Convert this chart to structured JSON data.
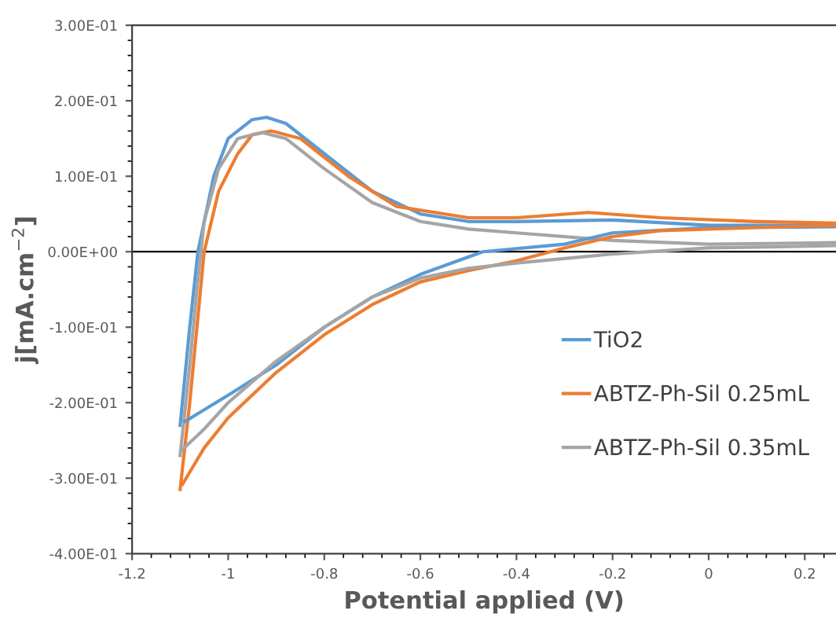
{
  "chart_data": {
    "type": "line",
    "xlabel": "Potential applied (V)",
    "ylabel": "j[mA.cm$^{−2}$]",
    "xlim": [
      -1.2,
      0.265
    ],
    "ylim": [
      -0.4,
      0.3
    ],
    "xticks": [
      -1.2,
      -1,
      -0.8,
      -0.6,
      -0.4,
      -0.2,
      0,
      0.2
    ],
    "yticks": [
      {
        "value": -0.4,
        "label": "-4.00E-01"
      },
      {
        "value": -0.3,
        "label": "-3.00E-01"
      },
      {
        "value": -0.2,
        "label": "-2.00E-01"
      },
      {
        "value": -0.1,
        "label": "-1.00E-01"
      },
      {
        "value": 0,
        "label": "0.00E+00"
      },
      {
        "value": 0.1,
        "label": "1.00E-01"
      },
      {
        "value": 0.2,
        "label": "2.00E-01"
      },
      {
        "value": 0.3,
        "label": "3.00E-01"
      }
    ],
    "ref_lines": [
      {
        "axis": "y",
        "value": 0,
        "color": "#000000"
      }
    ],
    "legend": "right",
    "grid": false,
    "marker": "none",
    "line_style": "solid",
    "series": [
      {
        "name": "TiO2",
        "color": "#5b9bd5",
        "x": [
          -1.1,
          -1.08,
          -1.063,
          -1.03,
          -1.0,
          -0.95,
          -0.92,
          -0.88,
          -0.8,
          -0.7,
          -0.6,
          -0.5,
          -0.4,
          -0.2,
          0,
          0.265
        ],
        "values": [
          -0.23,
          -0.1,
          0,
          0.1,
          0.15,
          0.175,
          0.178,
          0.17,
          0.13,
          0.08,
          0.05,
          0.04,
          0.04,
          0.042,
          0.035,
          0.035
        ]
      },
      {
        "name": "ABTZ-Ph-Sil 0.25mL",
        "color": "#ed7d31",
        "x": [
          -1.1,
          -1.08,
          -1.065,
          -1.05,
          -1.02,
          -0.98,
          -0.95,
          -0.91,
          -0.85,
          -0.75,
          -0.65,
          -0.5,
          -0.4,
          -0.25,
          -0.1,
          0.1,
          0.265
        ],
        "values": [
          -0.315,
          -0.2,
          -0.1,
          0,
          0.08,
          0.13,
          0.155,
          0.16,
          0.15,
          0.1,
          0.06,
          0.045,
          0.045,
          0.052,
          0.045,
          0.04,
          0.038
        ]
      },
      {
        "name": "ABTZ-Ph-Sil 0.35mL",
        "color": "#a5a5a5",
        "x": [
          -1.1,
          -1.08,
          -1.065,
          -1.05,
          -1.02,
          -0.98,
          -0.93,
          -0.88,
          -0.8,
          -0.7,
          -0.6,
          -0.5,
          -0.4,
          -0.2,
          0,
          0.265
        ],
        "values": [
          -0.27,
          -0.15,
          -0.05,
          0.04,
          0.11,
          0.15,
          0.158,
          0.15,
          0.11,
          0.065,
          0.04,
          0.03,
          0.025,
          0.015,
          0.01,
          0.012
        ]
      },
      {
        "color": "#5b9bd5",
        "x": [
          -1.09,
          -1.0,
          -0.9,
          -0.8,
          -0.7,
          -0.6,
          -0.47,
          -0.3,
          -0.2,
          0,
          0.265
        ],
        "values": [
          -0.225,
          -0.19,
          -0.15,
          -0.1,
          -0.06,
          -0.03,
          0,
          0.01,
          0.025,
          0.032,
          0.033
        ]
      },
      {
        "color": "#ed7d31",
        "x": [
          -1.095,
          -1.05,
          -1.0,
          -0.9,
          -0.8,
          -0.7,
          -0.6,
          -0.5,
          -0.4,
          -0.3,
          -0.2,
          -0.1,
          0.1,
          0.265
        ],
        "values": [
          -0.308,
          -0.26,
          -0.22,
          -0.16,
          -0.11,
          -0.07,
          -0.04,
          -0.025,
          -0.012,
          0.005,
          0.02,
          0.028,
          0.032,
          0.035
        ]
      },
      {
        "color": "#a5a5a5",
        "x": [
          -1.095,
          -1.05,
          -1.0,
          -0.9,
          -0.8,
          -0.7,
          -0.6,
          -0.5,
          -0.4,
          -0.2,
          0,
          0.265
        ],
        "values": [
          -0.262,
          -0.235,
          -0.2,
          -0.145,
          -0.1,
          -0.06,
          -0.035,
          -0.022,
          -0.015,
          -0.003,
          0.005,
          0.008
        ]
      }
    ]
  }
}
